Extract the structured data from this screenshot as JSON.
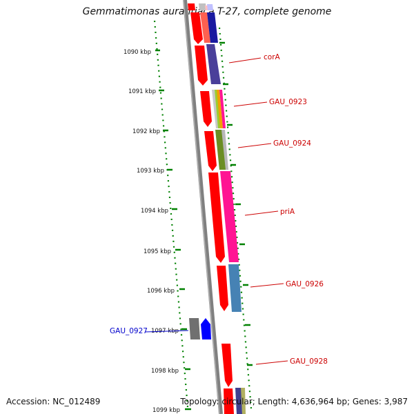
{
  "title": "Gemmatimonas aurantiaca T-27, complete genome",
  "footer": {
    "accession": "Accession: NC_012489",
    "summary": "Topology: circular; Length: 4,636,964 bp; Genes: 3,987"
  },
  "ruler": {
    "color": "#008000",
    "ticks": [
      "1090 kbp",
      "1091 kbp",
      "1092 kbp",
      "1093 kbp",
      "1094 kbp",
      "1095 kbp",
      "1096 kbp",
      "1097 kbp",
      "1098 kbp",
      "1099 kbp"
    ]
  },
  "genes": [
    {
      "label": "corA",
      "color": "#cc0000"
    },
    {
      "label": "GAU_0923",
      "color": "#cc0000"
    },
    {
      "label": "GAU_0924",
      "color": "#cc0000"
    },
    {
      "label": "priA",
      "color": "#cc0000"
    },
    {
      "label": "GAU_0926",
      "color": "#cc0000"
    },
    {
      "label": "GAU_0927",
      "color": "#0000cc"
    },
    {
      "label": "GAU_0928",
      "color": "#cc0000"
    }
  ],
  "colors": {
    "backbone": "#808080",
    "cds": "#ff0000",
    "highlight_gene": "#0000ff",
    "pseudo": "#707070"
  }
}
